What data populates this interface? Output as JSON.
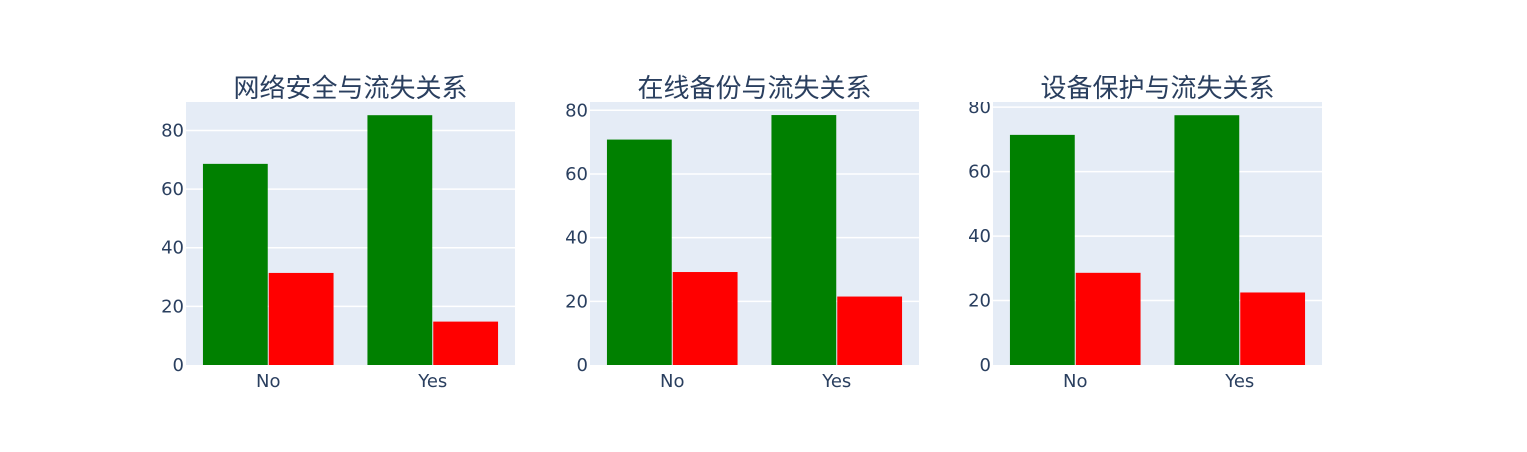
{
  "colors": {
    "bar_series_1": "#008000",
    "bar_series_2": "#ff0000",
    "plot_bg": "#e5ecf6",
    "grid": "#ffffff",
    "text": "#2a3f5f"
  },
  "chart_data": [
    {
      "type": "bar",
      "title": "网络安全与流失关系",
      "categories": [
        "No",
        "Yes"
      ],
      "series": [
        {
          "values": [
            68.6,
            85.2
          ],
          "color": "#008000"
        },
        {
          "values": [
            31.4,
            14.8
          ],
          "color": "#ff0000"
        }
      ],
      "yticks": [
        0,
        20,
        40,
        60,
        80
      ],
      "ylim": [
        0,
        89.7
      ],
      "grid": true
    },
    {
      "type": "bar",
      "title": "在线备份与流失关系",
      "categories": [
        "No",
        "Yes"
      ],
      "series": [
        {
          "values": [
            70.8,
            78.5
          ],
          "color": "#008000"
        },
        {
          "values": [
            29.2,
            21.5
          ],
          "color": "#ff0000"
        }
      ],
      "yticks": [
        0,
        20,
        40,
        60,
        80
      ],
      "ylim": [
        0,
        82.6
      ],
      "grid": true
    },
    {
      "type": "bar",
      "title": "设备保护与流失关系",
      "categories": [
        "No",
        "Yes"
      ],
      "series": [
        {
          "values": [
            71.4,
            77.5
          ],
          "color": "#008000"
        },
        {
          "values": [
            28.6,
            22.5
          ],
          "color": "#ff0000"
        }
      ],
      "yticks": [
        0,
        20,
        40,
        60,
        80
      ],
      "ylim": [
        0,
        81.6
      ],
      "grid": true
    }
  ]
}
